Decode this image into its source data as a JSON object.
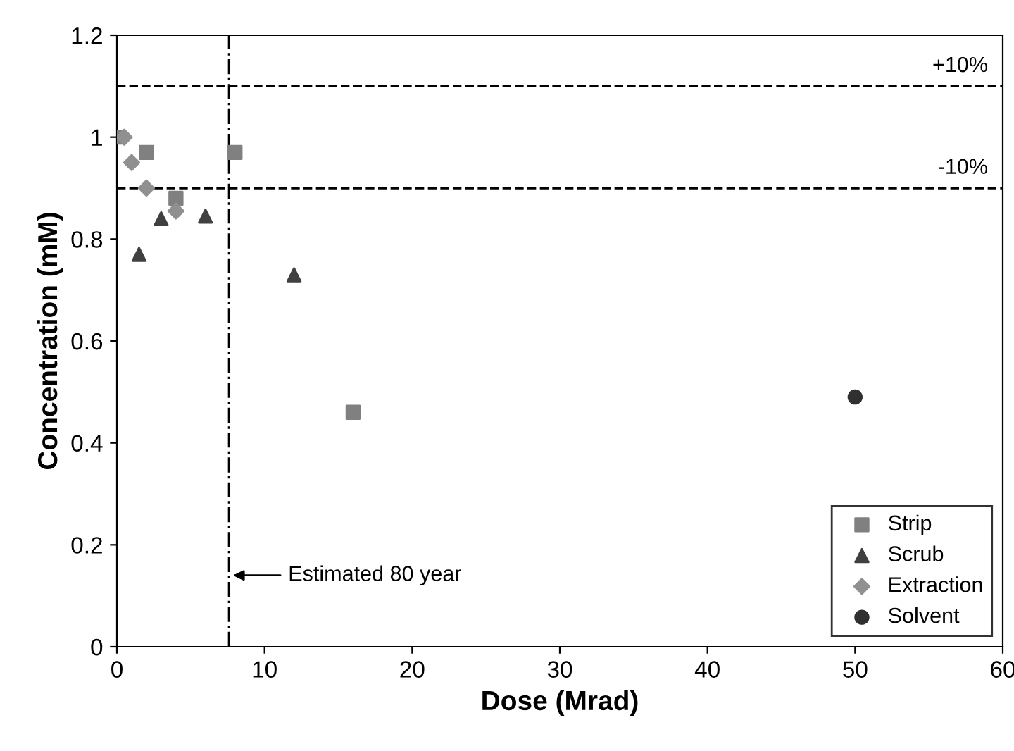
{
  "chart_data": {
    "type": "scatter",
    "xlabel": "Dose (Mrad)",
    "ylabel": "Concentration (mM)",
    "xlim": [
      0,
      60
    ],
    "xticks": [
      0,
      10,
      20,
      30,
      40,
      50,
      60
    ],
    "ylim": [
      0,
      1.2
    ],
    "yticks": [
      0,
      0.2,
      0.4,
      0.6,
      0.8,
      1,
      1.2
    ],
    "grid": false,
    "legend": "bottom right",
    "series": [
      {
        "name": "Strip",
        "color": "#808080",
        "marker": "square",
        "x": [
          0,
          2,
          4,
          8,
          16
        ],
        "values": [
          1.0,
          0.97,
          0.88,
          0.97,
          0.46
        ]
      },
      {
        "name": "Scrub",
        "color": "#404040",
        "marker": "triangle",
        "x": [
          1.5,
          3,
          6,
          12
        ],
        "values": [
          0.77,
          0.84,
          0.845,
          0.73
        ]
      },
      {
        "name": "Extraction",
        "color": "#909090",
        "marker": "diamond",
        "x": [
          0.5,
          1,
          2,
          4
        ],
        "values": [
          1.0,
          0.95,
          0.9,
          0.855
        ]
      },
      {
        "name": "Solvent",
        "color": "#303030",
        "marker": "circle",
        "x": [
          50
        ],
        "values": [
          0.49
        ]
      }
    ],
    "annotations": [
      {
        "text": "+10%",
        "x": 59,
        "y": 1.1
      },
      {
        "text": "-10%",
        "x": 59,
        "y": 0.9
      }
    ],
    "ref_lines": [
      {
        "axis": "y",
        "value": 1.1,
        "line_style": "dashed",
        "color": "#000000"
      },
      {
        "axis": "y",
        "value": 0.9,
        "line_style": "dashed",
        "color": "#000000"
      },
      {
        "axis": "x",
        "value": 7.6,
        "label": "Estimated 80 year",
        "line_style": "dashdot",
        "color": "#000000"
      }
    ]
  }
}
